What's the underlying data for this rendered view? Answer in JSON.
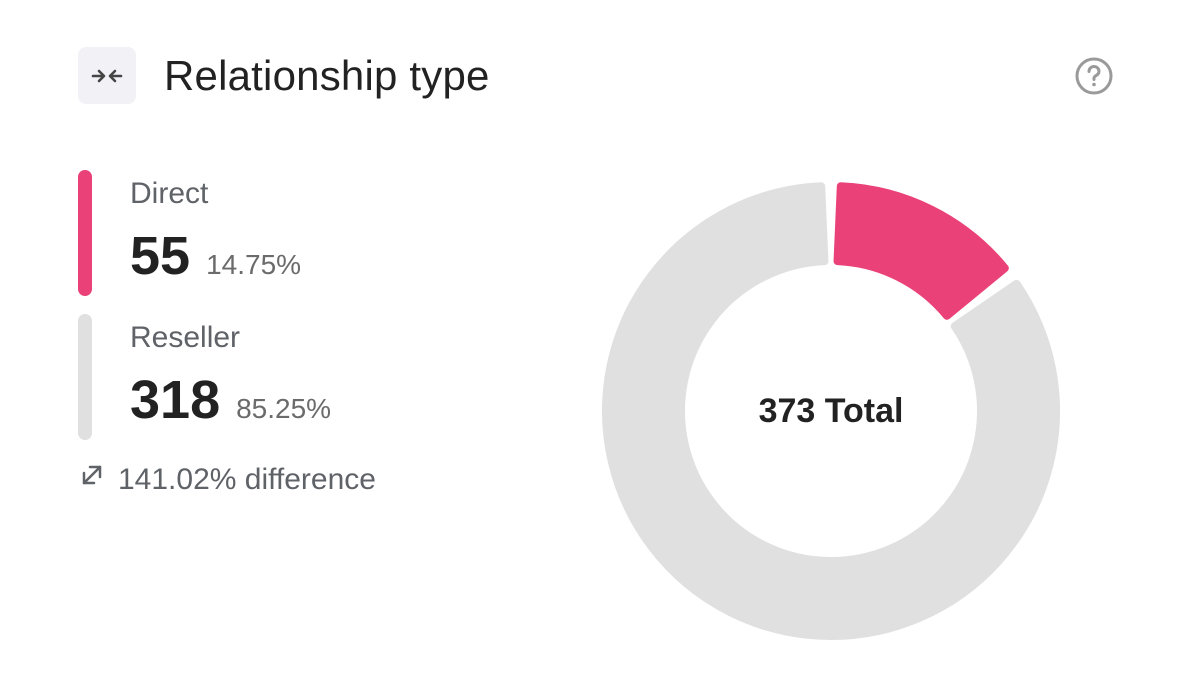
{
  "header": {
    "icon": "compare-arrows-icon",
    "title": "Relationship type",
    "help_icon": "help-circle-icon"
  },
  "legend": [
    {
      "label": "Direct",
      "value": "55",
      "percent": "14.75%",
      "color": "#ea4178"
    },
    {
      "label": "Reseller",
      "value": "318",
      "percent": "85.25%",
      "color": "#e0e0e0"
    }
  ],
  "difference": {
    "icon": "diagonal-expand-icon",
    "text": "141.02% difference"
  },
  "chart_data": {
    "type": "pie",
    "categories": [
      "Direct",
      "Reseller"
    ],
    "values": [
      55,
      318
    ],
    "colors": [
      "#ea4178",
      "#e0e0e0"
    ],
    "center_label": "373 Total",
    "donut": true
  }
}
